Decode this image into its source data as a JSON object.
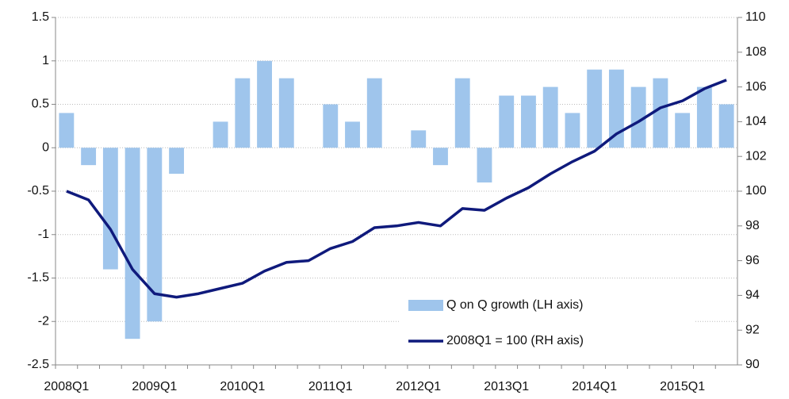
{
  "chart_data": {
    "type": "bar",
    "categories": [
      "2008Q1",
      null,
      null,
      null,
      "2009Q1",
      null,
      null,
      null,
      "2010Q1",
      null,
      null,
      null,
      "2011Q1",
      null,
      null,
      null,
      "2012Q1",
      null,
      null,
      null,
      "2013Q1",
      null,
      null,
      null,
      "2014Q1",
      null,
      null,
      null,
      "2015Q1",
      null,
      null
    ],
    "series": [
      {
        "name": "Q on Q growth (LH axis)",
        "type": "bar",
        "color": "#9fc5ec",
        "values": [
          0.4,
          -0.2,
          -1.4,
          -2.2,
          -2.0,
          -0.3,
          0,
          0.3,
          0.8,
          1.0,
          0.8,
          0,
          0.5,
          0.3,
          0.8,
          0,
          0.2,
          -0.2,
          0.8,
          -0.4,
          0.6,
          0.6,
          0.7,
          0.4,
          0.9,
          0.9,
          0.7,
          0.8,
          0.4,
          0.7,
          0.5
        ]
      },
      {
        "name": "2008Q1 = 100 (RH axis)",
        "type": "line",
        "axis": "y2",
        "color": "#0f1a7c",
        "values": [
          100,
          99.5,
          97.8,
          95.5,
          94.1,
          93.9,
          94.1,
          94.4,
          94.7,
          95.4,
          95.9,
          96.0,
          96.7,
          97.1,
          97.9,
          98.0,
          98.2,
          98.0,
          99.0,
          98.9,
          99.6,
          100.2,
          101.0,
          101.7,
          102.3,
          103.3,
          104.0,
          104.8,
          105.2,
          105.9,
          106.4
        ]
      }
    ],
    "ylim": [
      -2.5,
      1.5
    ],
    "yticks": [
      -2.5,
      -2,
      -1.5,
      -1,
      -0.5,
      0,
      0.5,
      1,
      1.5
    ],
    "y2lim": [
      90,
      110
    ],
    "y2ticks": [
      90,
      92,
      94,
      96,
      98,
      100,
      102,
      104,
      106,
      108,
      110
    ],
    "grid": true,
    "legend": "bottom-right"
  }
}
